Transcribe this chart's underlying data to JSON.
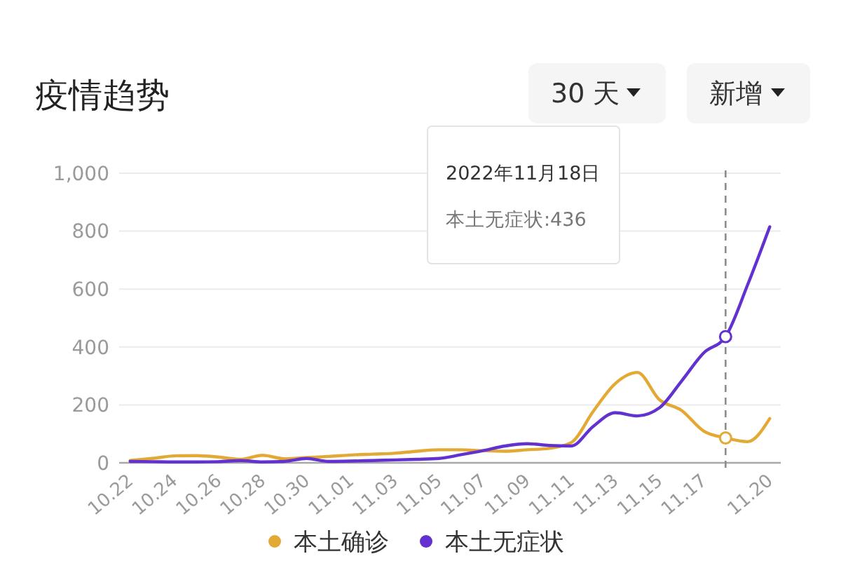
{
  "chart_data": {
    "type": "line",
    "title": "疫情趋势",
    "x": [
      "2022-10-22",
      "2022-10-23",
      "2022-10-24",
      "2022-10-25",
      "2022-10-26",
      "2022-10-27",
      "2022-10-28",
      "2022-10-29",
      "2022-10-30",
      "2022-10-31",
      "2022-11-01",
      "2022-11-02",
      "2022-11-03",
      "2022-11-04",
      "2022-11-05",
      "2022-11-06",
      "2022-11-07",
      "2022-11-08",
      "2022-11-09",
      "2022-11-10",
      "2022-11-11",
      "2022-11-12",
      "2022-11-13",
      "2022-11-14",
      "2022-11-15",
      "2022-11-16",
      "2022-11-17",
      "2022-11-18",
      "2022-11-19",
      "2022-11-20"
    ],
    "xlim": [
      "2022-10-21T12:00",
      "2022-11-20T12:00"
    ],
    "xticks": [
      {
        "value": "2022-10-22",
        "label": "10.22"
      },
      {
        "value": "2022-10-24",
        "label": "10.24"
      },
      {
        "value": "2022-10-26",
        "label": "10.26"
      },
      {
        "value": "2022-10-28",
        "label": "10.28"
      },
      {
        "value": "2022-10-30",
        "label": "10.30"
      },
      {
        "value": "2022-11-01",
        "label": "11.01"
      },
      {
        "value": "2022-11-03",
        "label": "11.03"
      },
      {
        "value": "2022-11-05",
        "label": "11.05"
      },
      {
        "value": "2022-11-07",
        "label": "11.07"
      },
      {
        "value": "2022-11-09",
        "label": "11.09"
      },
      {
        "value": "2022-11-11",
        "label": "11.11"
      },
      {
        "value": "2022-11-13",
        "label": "11.13"
      },
      {
        "value": "2022-11-15",
        "label": "11.15"
      },
      {
        "value": "2022-11-17",
        "label": "11.17"
      },
      {
        "value": "2022-11-20",
        "label": "11.20"
      }
    ],
    "ylim": [
      0,
      1000
    ],
    "yticks": [
      0,
      200,
      400,
      600,
      800,
      {
        "value": 1000,
        "label": "1,000"
      }
    ],
    "grid": "y",
    "legend": "bottom",
    "series": [
      {
        "name": "本土确诊",
        "color": "#e3a935",
        "values": [
          8,
          15,
          24,
          25,
          20,
          12,
          26,
          14,
          18,
          22,
          27,
          30,
          33,
          40,
          45,
          45,
          42,
          40,
          45,
          50,
          70,
          178,
          274,
          312,
          218,
          181,
          110,
          86,
          73,
          153
        ]
      },
      {
        "name": "本土无症状",
        "color": "#6331d0",
        "values": [
          5,
          4,
          3,
          3,
          4,
          8,
          3,
          5,
          15,
          5,
          6,
          8,
          10,
          12,
          15,
          28,
          42,
          58,
          66,
          60,
          58,
          126,
          173,
          162,
          190,
          282,
          379,
          436,
          615,
          815
        ]
      }
    ],
    "ref_lines": [
      {
        "axis": "x",
        "value": "2022-11-18",
        "color": "#8c8c8c",
        "line_style": "dashed"
      }
    ],
    "annotations": [
      "2022年11月18日",
      "本土无症状:436",
      "30 天",
      "新增"
    ]
  }
}
